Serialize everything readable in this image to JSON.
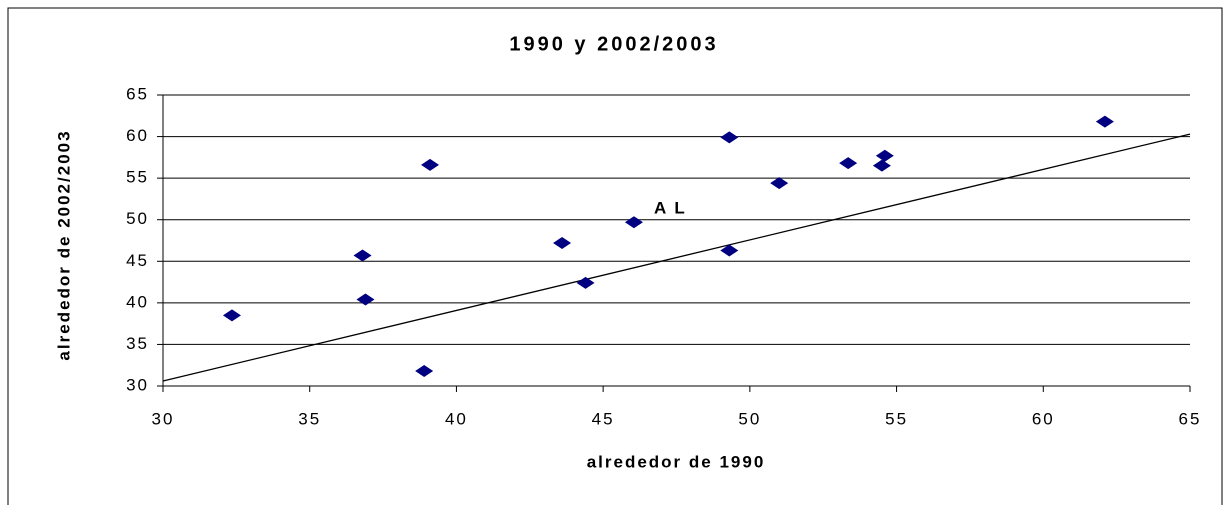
{
  "chart_data": {
    "type": "scatter",
    "title": "1990 y 2002/2003",
    "x_label": "alrededor de 1990",
    "y_label": "alrededor de 2002/2003",
    "annotation": "A L",
    "series": [
      {
        "color": "#000080",
        "x": [
          32.35,
          36.8,
          36.9,
          38.9,
          39.1,
          43.6,
          44.4,
          46.05,
          49.3,
          49.3,
          51.0,
          53.35,
          54.5,
          54.6,
          62.1
        ],
        "values": [
          38.5,
          45.7,
          40.4,
          31.8,
          56.6,
          47.2,
          42.4,
          49.7,
          59.9,
          46.3,
          54.4,
          56.8,
          56.5,
          57.7,
          61.8
        ]
      }
    ],
    "reference_line": {
      "x": [
        30,
        65
      ],
      "values": [
        30.6,
        60.3
      ],
      "color": "#000000"
    },
    "xlim": [
      30,
      65
    ],
    "xticks": [
      30,
      35,
      40,
      45,
      50,
      55,
      60,
      65
    ],
    "ylim": [
      30,
      65
    ],
    "yticks": [
      30,
      35,
      40,
      45,
      50,
      55,
      60,
      65
    ],
    "grid": true
  }
}
